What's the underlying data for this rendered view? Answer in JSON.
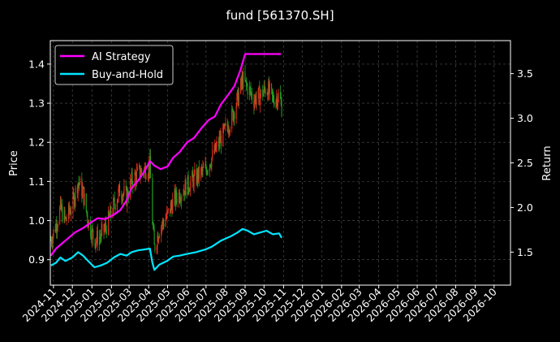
{
  "chart_data": {
    "type": "line",
    "title": "fund [561370.SH]",
    "xlabel": "",
    "ylabel_left": "Price",
    "ylabel_right": "Return",
    "x_ticks": [
      "2024-11",
      "2024-12",
      "2025-01",
      "2025-02",
      "2025-03",
      "2025-04",
      "2025-05",
      "2025-06",
      "2025-07",
      "2025-08",
      "2025-09",
      "2025-10",
      "2025-11",
      "2025-12",
      "2026-01",
      "2026-02",
      "2026-03",
      "2026-04",
      "2026-05",
      "2026-06",
      "2026-07",
      "2026-08",
      "2026-09",
      "2026-10"
    ],
    "xlim": [
      "2024-10-27",
      "2026-10-27"
    ],
    "ylim_left": [
      0.835,
      1.46
    ],
    "y_ticks_left": [
      0.9,
      1.0,
      1.1,
      1.2,
      1.3,
      1.4
    ],
    "ylim_right": [
      1.13,
      3.87
    ],
    "y_ticks_right": [
      1.5,
      2.0,
      2.5,
      3.0,
      3.5
    ],
    "grid": true,
    "legend_position": "top-left",
    "colors": {
      "background": "#000000",
      "strategy": "#ff00ff",
      "buyhold": "#00e5ff",
      "candle_up": "#e83020",
      "candle_down": "#1fa020",
      "grid": "#555555"
    },
    "series": [
      {
        "name": "AI Strategy",
        "axis": "right",
        "points": [
          [
            "2024-10-28",
            1.46
          ],
          [
            "2024-11-05",
            1.54
          ],
          [
            "2024-11-15",
            1.6
          ],
          [
            "2024-11-25",
            1.66
          ],
          [
            "2024-12-05",
            1.72
          ],
          [
            "2024-12-18",
            1.77
          ],
          [
            "2025-01-01",
            1.84
          ],
          [
            "2025-01-10",
            1.88
          ],
          [
            "2025-01-22",
            1.87
          ],
          [
            "2025-02-05",
            1.92
          ],
          [
            "2025-02-15",
            1.97
          ],
          [
            "2025-02-25",
            2.08
          ],
          [
            "2025-03-05",
            2.22
          ],
          [
            "2025-03-15",
            2.3
          ],
          [
            "2025-03-25",
            2.4
          ],
          [
            "2025-04-03",
            2.52
          ],
          [
            "2025-04-10",
            2.47
          ],
          [
            "2025-04-20",
            2.43
          ],
          [
            "2025-05-01",
            2.46
          ],
          [
            "2025-05-10",
            2.56
          ],
          [
            "2025-05-20",
            2.62
          ],
          [
            "2025-06-01",
            2.73
          ],
          [
            "2025-06-12",
            2.78
          ],
          [
            "2025-06-25",
            2.9
          ],
          [
            "2025-07-05",
            2.98
          ],
          [
            "2025-07-15",
            3.02
          ],
          [
            "2025-07-25",
            3.16
          ],
          [
            "2025-08-05",
            3.26
          ],
          [
            "2025-08-15",
            3.36
          ],
          [
            "2025-08-25",
            3.55
          ],
          [
            "2025-09-01",
            3.72
          ],
          [
            "2025-09-10",
            3.72
          ],
          [
            "2025-09-20",
            3.72
          ],
          [
            "2025-10-01",
            3.72
          ],
          [
            "2025-10-10",
            3.72
          ],
          [
            "2025-10-20",
            3.72
          ],
          [
            "2025-10-28",
            3.72
          ]
        ]
      },
      {
        "name": "Buy-and-Hold",
        "axis": "right",
        "points": [
          [
            "2024-10-28",
            1.35
          ],
          [
            "2024-11-05",
            1.38
          ],
          [
            "2024-11-12",
            1.44
          ],
          [
            "2024-11-20",
            1.4
          ],
          [
            "2024-12-01",
            1.44
          ],
          [
            "2024-12-10",
            1.5
          ],
          [
            "2024-12-18",
            1.46
          ],
          [
            "2024-12-26",
            1.4
          ],
          [
            "2025-01-05",
            1.33
          ],
          [
            "2025-01-15",
            1.35
          ],
          [
            "2025-01-25",
            1.38
          ],
          [
            "2025-02-05",
            1.44
          ],
          [
            "2025-02-15",
            1.48
          ],
          [
            "2025-02-25",
            1.46
          ],
          [
            "2025-03-05",
            1.5
          ],
          [
            "2025-03-15",
            1.52
          ],
          [
            "2025-03-25",
            1.53
          ],
          [
            "2025-04-03",
            1.54
          ],
          [
            "2025-04-07",
            1.38
          ],
          [
            "2025-04-10",
            1.3
          ],
          [
            "2025-04-18",
            1.36
          ],
          [
            "2025-04-30",
            1.4
          ],
          [
            "2025-05-10",
            1.45
          ],
          [
            "2025-05-20",
            1.46
          ],
          [
            "2025-06-01",
            1.48
          ],
          [
            "2025-06-15",
            1.5
          ],
          [
            "2025-06-30",
            1.53
          ],
          [
            "2025-07-10",
            1.56
          ],
          [
            "2025-07-25",
            1.63
          ],
          [
            "2025-08-10",
            1.68
          ],
          [
            "2025-08-20",
            1.72
          ],
          [
            "2025-08-28",
            1.76
          ],
          [
            "2025-09-05",
            1.74
          ],
          [
            "2025-09-15",
            1.7
          ],
          [
            "2025-09-25",
            1.72
          ],
          [
            "2025-10-05",
            1.74
          ],
          [
            "2025-10-15",
            1.7
          ],
          [
            "2025-10-25",
            1.71
          ],
          [
            "2025-10-29",
            1.66
          ]
        ]
      }
    ],
    "price_path": [
      [
        "2024-10-28",
        0.95
      ],
      [
        "2024-11-05",
        0.99
      ],
      [
        "2024-11-12",
        1.03
      ],
      [
        "2024-11-20",
        1.0
      ],
      [
        "2024-12-01",
        1.04
      ],
      [
        "2024-12-10",
        1.1
      ],
      [
        "2024-12-18",
        1.07
      ],
      [
        "2024-12-26",
        1.0
      ],
      [
        "2025-01-05",
        0.95
      ],
      [
        "2025-01-15",
        0.96
      ],
      [
        "2025-01-25",
        0.99
      ],
      [
        "2025-02-05",
        1.04
      ],
      [
        "2025-02-15",
        1.08
      ],
      [
        "2025-02-25",
        1.06
      ],
      [
        "2025-03-05",
        1.1
      ],
      [
        "2025-03-15",
        1.12
      ],
      [
        "2025-03-25",
        1.13
      ],
      [
        "2025-04-03",
        1.14
      ],
      [
        "2025-04-07",
        1.0
      ],
      [
        "2025-04-10",
        0.93
      ],
      [
        "2025-04-18",
        0.98
      ],
      [
        "2025-04-30",
        1.01
      ],
      [
        "2025-05-10",
        1.05
      ],
      [
        "2025-05-20",
        1.07
      ],
      [
        "2025-06-01",
        1.09
      ],
      [
        "2025-06-15",
        1.11
      ],
      [
        "2025-06-30",
        1.13
      ],
      [
        "2025-07-10",
        1.16
      ],
      [
        "2025-07-25",
        1.21
      ],
      [
        "2025-08-10",
        1.26
      ],
      [
        "2025-08-20",
        1.31
      ],
      [
        "2025-08-28",
        1.36
      ],
      [
        "2025-09-05",
        1.34
      ],
      [
        "2025-09-15",
        1.31
      ],
      [
        "2025-09-25",
        1.32
      ],
      [
        "2025-10-05",
        1.34
      ],
      [
        "2025-10-15",
        1.31
      ],
      [
        "2025-10-25",
        1.32
      ],
      [
        "2025-10-29",
        1.29
      ]
    ]
  }
}
